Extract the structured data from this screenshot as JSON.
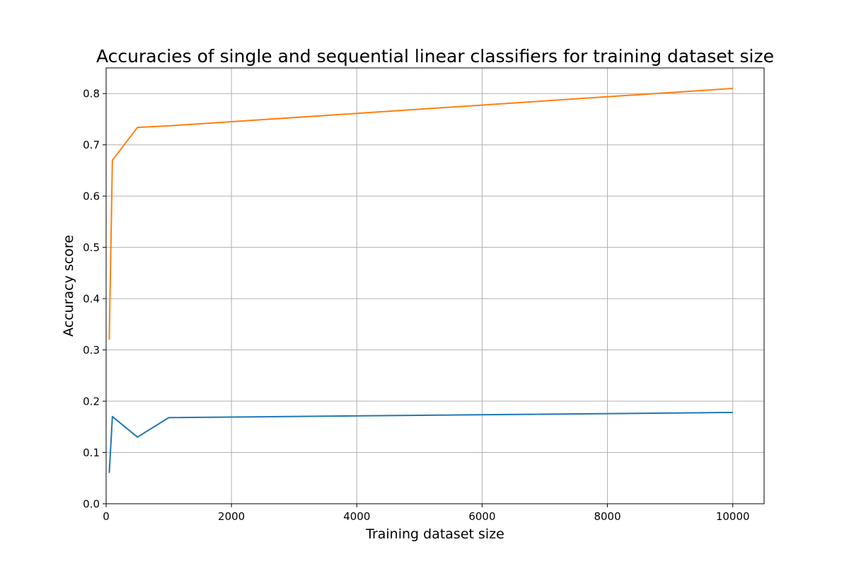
{
  "chart_data": {
    "type": "line",
    "title": "Accuracies of single and sequential linear classifiers for training dataset size",
    "xlabel": "Training dataset size",
    "ylabel": "Accuracy score",
    "xlim": [
      0,
      10500
    ],
    "ylim": [
      0.0,
      0.85
    ],
    "x_ticks": [
      0,
      2000,
      4000,
      6000,
      8000,
      10000
    ],
    "x_tick_labels": [
      "0",
      "2000",
      "4000",
      "6000",
      "8000",
      "10000"
    ],
    "y_ticks": [
      0.0,
      0.1,
      0.2,
      0.3,
      0.4,
      0.5,
      0.6,
      0.7,
      0.8
    ],
    "y_tick_labels": [
      "0.0",
      "0.1",
      "0.2",
      "0.3",
      "0.4",
      "0.5",
      "0.6",
      "0.7",
      "0.8"
    ],
    "grid": true,
    "legend": false,
    "series": [
      {
        "color": "#1f77b4",
        "x": [
          50,
          100,
          500,
          1000,
          10000
        ],
        "y": [
          0.06,
          0.17,
          0.13,
          0.168,
          0.178
        ]
      },
      {
        "color": "#ff7f0e",
        "x": [
          50,
          100,
          500,
          1000,
          10000
        ],
        "y": [
          0.32,
          0.67,
          0.734,
          0.737,
          0.81
        ]
      }
    ]
  }
}
